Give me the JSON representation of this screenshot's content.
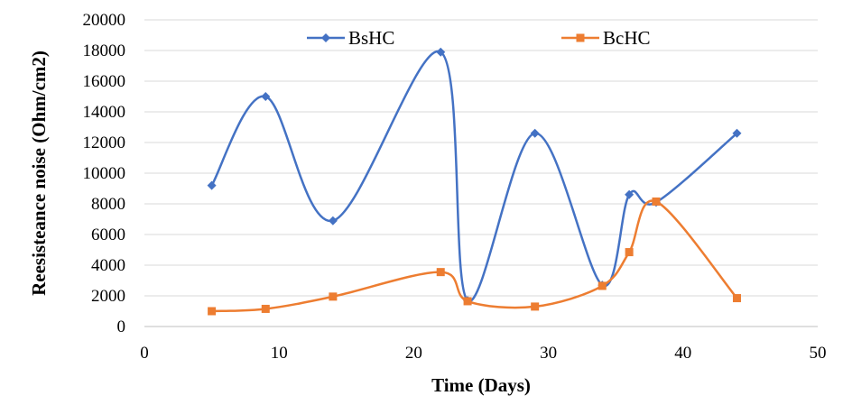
{
  "chart_data": {
    "type": "line",
    "title": "",
    "xlabel": "Time (Days)",
    "ylabel": "Reesisteance noise (Ohm/cm2)",
    "xlim": [
      0,
      50
    ],
    "ylim": [
      0,
      20000
    ],
    "x_ticks": [
      0,
      10,
      20,
      30,
      40,
      50
    ],
    "y_ticks": [
      0,
      2000,
      4000,
      6000,
      8000,
      10000,
      12000,
      14000,
      16000,
      18000,
      20000
    ],
    "grid": "horizontal",
    "legend": "top",
    "smoothed": true,
    "series": [
      {
        "name": "BsHC",
        "color": "#4472C4",
        "marker": "diamond",
        "x": [
          5,
          9,
          14,
          22,
          24,
          29,
          34,
          36,
          38,
          44
        ],
        "y": [
          9200,
          15000,
          6900,
          17900,
          1700,
          12600,
          2700,
          8600,
          8100,
          12600
        ]
      },
      {
        "name": "BcHC",
        "color": "#ED7D31",
        "marker": "square",
        "x": [
          5,
          9,
          14,
          22,
          24,
          29,
          34,
          36,
          38,
          44
        ],
        "y": [
          1000,
          1150,
          1950,
          3550,
          1650,
          1300,
          2650,
          4850,
          8150,
          1850
        ]
      }
    ]
  }
}
